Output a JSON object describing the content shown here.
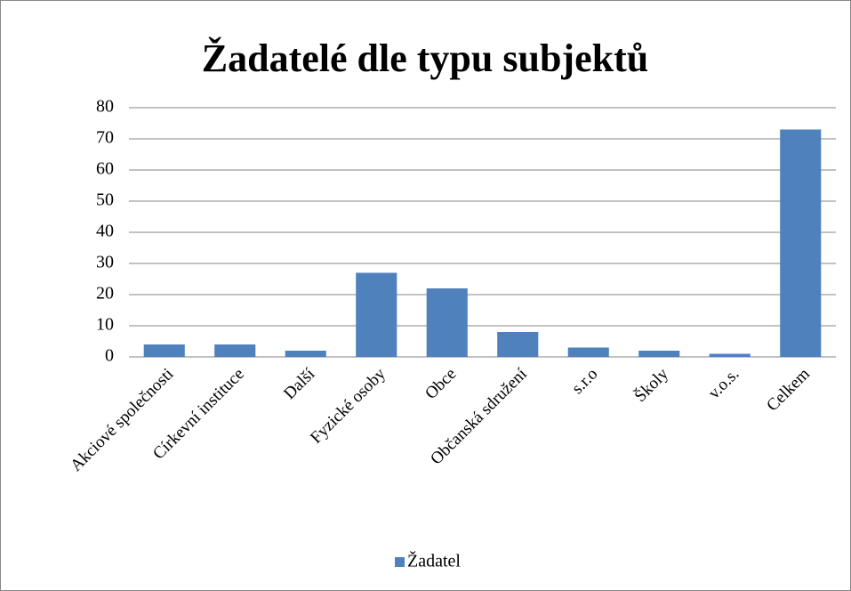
{
  "chart_data": {
    "type": "bar",
    "title": "Žadatelé dle typu subjektů",
    "categories": [
      "Akciové společnosti",
      "Církevní instituce",
      "Další",
      "Fyzické osoby",
      "Obce",
      "Občanská sdružení",
      "s.r.o",
      "Školy",
      "v.o.s.",
      "Celkem"
    ],
    "series": [
      {
        "name": "Žadatel",
        "color": "#4f81bd",
        "values": [
          4,
          4,
          2,
          27,
          22,
          8,
          3,
          2,
          1,
          73
        ]
      }
    ],
    "ylim": [
      0,
      80
    ],
    "yticks": [
      0,
      10,
      20,
      30,
      40,
      50,
      60,
      70,
      80
    ],
    "grid": true,
    "legend": "bottom"
  }
}
